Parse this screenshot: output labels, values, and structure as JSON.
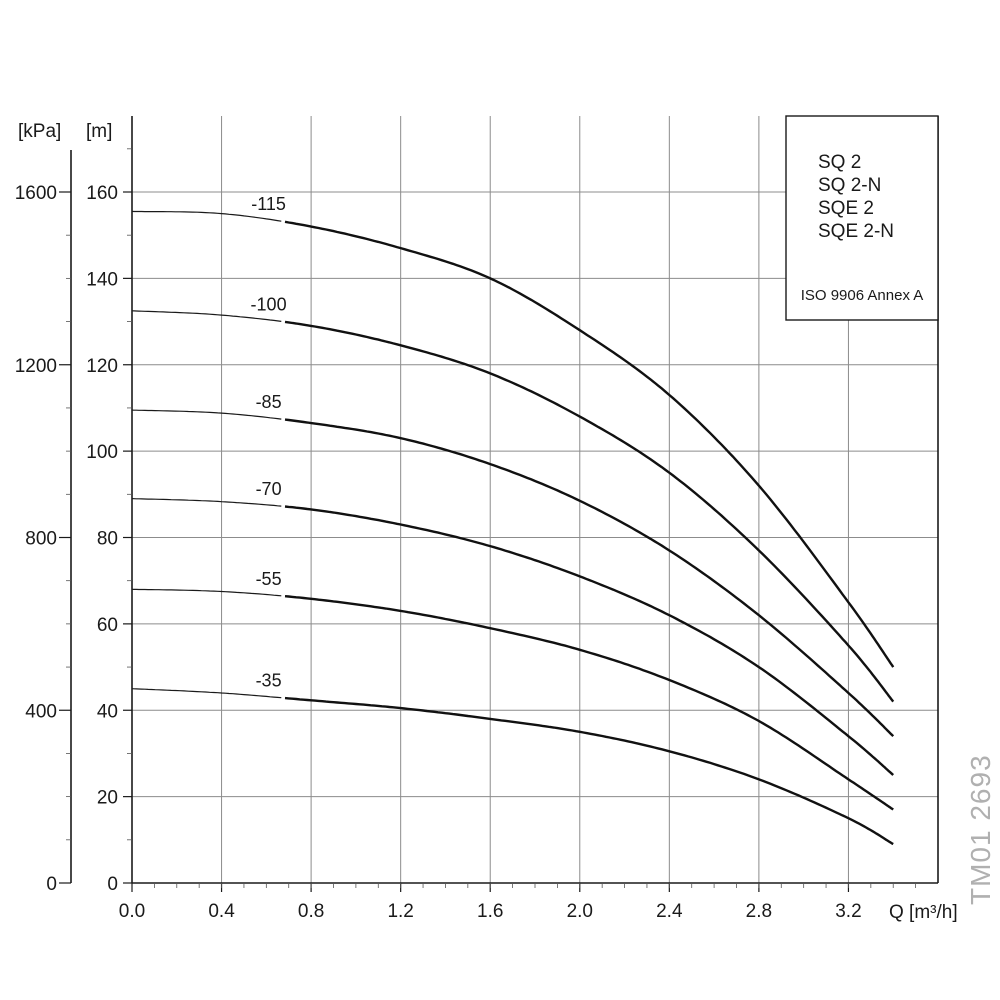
{
  "chart_data": {
    "type": "line",
    "title": "",
    "xlabel": "Q [m³/h]",
    "ylabel": "[m]",
    "ylabel_secondary": "[kPa]",
    "xlim": [
      0,
      3.6
    ],
    "ylim": [
      0,
      160
    ],
    "ylim_secondary": [
      0,
      1600
    ],
    "x_ticks": [
      "0.0",
      "0.4",
      "0.8",
      "1.2",
      "1.6",
      "2.0",
      "2.4",
      "2.8",
      "3.2"
    ],
    "y_ticks": [
      "0",
      "20",
      "40",
      "60",
      "80",
      "100",
      "120",
      "140",
      "160"
    ],
    "y_ticks_secondary": [
      "0",
      "400",
      "800",
      "1200",
      "1600"
    ],
    "grid": true,
    "operating_range_start_q": 0.68,
    "series": [
      {
        "name": "-115",
        "x": [
          0,
          0.4,
          0.8,
          1.2,
          1.6,
          2.0,
          2.4,
          2.8,
          3.2,
          3.4
        ],
        "y": [
          155.5,
          155,
          152,
          147,
          140,
          128,
          113,
          92,
          65,
          50
        ]
      },
      {
        "name": "-100",
        "x": [
          0,
          0.4,
          0.8,
          1.2,
          1.6,
          2.0,
          2.4,
          2.8,
          3.2,
          3.4
        ],
        "y": [
          132.5,
          131.5,
          129,
          124.5,
          118,
          108,
          95,
          77,
          55,
          42
        ]
      },
      {
        "name": "-85",
        "x": [
          0,
          0.4,
          0.8,
          1.2,
          1.6,
          2.0,
          2.4,
          2.8,
          3.2,
          3.4
        ],
        "y": [
          109.5,
          108.8,
          106.5,
          103,
          97,
          88.5,
          77,
          62,
          44,
          34
        ]
      },
      {
        "name": "-70",
        "x": [
          0,
          0.4,
          0.8,
          1.2,
          1.6,
          2.0,
          2.4,
          2.8,
          3.2,
          3.4
        ],
        "y": [
          89,
          88.3,
          86.5,
          83,
          78,
          71,
          62,
          50,
          34,
          25
        ]
      },
      {
        "name": "-55",
        "x": [
          0,
          0.4,
          0.8,
          1.2,
          1.6,
          2.0,
          2.4,
          2.8,
          3.2,
          3.4
        ],
        "y": [
          68,
          67.5,
          65.8,
          63,
          59,
          54,
          47,
          37.5,
          24,
          17
        ]
      },
      {
        "name": "-35",
        "x": [
          0,
          0.4,
          0.8,
          1.2,
          1.6,
          2.0,
          2.4,
          2.8,
          3.2,
          3.4
        ],
        "y": [
          45,
          44,
          42.3,
          40.5,
          38,
          35,
          30.5,
          24,
          15,
          9
        ]
      }
    ]
  },
  "legend": {
    "models": [
      "SQ 2",
      "SQ 2-N",
      "SQE 2",
      "SQE 2-N"
    ],
    "standard": "ISO 9906 Annex A"
  },
  "watermark": "TM01 2693"
}
